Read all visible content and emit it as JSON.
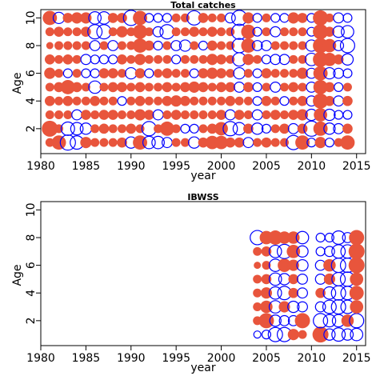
{
  "colors": {
    "positive": "#e8553c",
    "negative": "#0000ff"
  },
  "chart_data": [
    {
      "type": "scatter",
      "title": "Total catches",
      "xlabel": "year",
      "ylabel": "Age",
      "xlim": [
        1980,
        2016
      ],
      "ylim": [
        0.2,
        10.6
      ],
      "xticks": [
        1980,
        1985,
        1990,
        1995,
        2000,
        2005,
        2010,
        2015
      ],
      "yticks": [
        2,
        4,
        6,
        8,
        10
      ],
      "years": [
        1981,
        1982,
        1983,
        1984,
        1985,
        1986,
        1987,
        1988,
        1989,
        1990,
        1991,
        1992,
        1993,
        1994,
        1995,
        1996,
        1997,
        1998,
        1999,
        2000,
        2001,
        2002,
        2003,
        2004,
        2005,
        2006,
        2007,
        2008,
        2009,
        2010,
        2011,
        2012,
        2013,
        2014
      ],
      "ages": [
        1,
        2,
        3,
        4,
        5,
        6,
        7,
        8,
        9,
        10
      ],
      "residuals": [
        [
          0.3,
          1.0,
          0.3,
          0.4,
          0.3,
          0.5,
          0.4,
          0.2,
          0.3,
          0.8
        ],
        [
          0.8,
          0.3,
          0.3,
          0.3,
          0.4,
          0.3,
          0.3,
          0.3,
          0.4,
          -0.5
        ],
        [
          -0.9,
          -0.7,
          0.3,
          0.4,
          0.8,
          -0.3,
          0.4,
          0.3,
          0.3,
          0.4
        ],
        [
          -0.7,
          -0.6,
          -0.4,
          0.3,
          0.4,
          0.3,
          0.3,
          0.3,
          0.3,
          0.5
        ],
        [
          0.5,
          -0.5,
          0.4,
          0.3,
          0.3,
          -0.3,
          -0.4,
          0.3,
          0.4,
          0.5
        ],
        [
          0.3,
          0.3,
          0.3,
          0.4,
          -0.6,
          -0.3,
          -0.3,
          -0.4,
          -0.8,
          -0.6
        ],
        [
          0.3,
          0.4,
          0.4,
          0.3,
          0.3,
          0.4,
          -0.3,
          0.3,
          -0.8,
          -0.6
        ],
        [
          0.3,
          0.3,
          0.4,
          0.3,
          0.4,
          0.4,
          -0.3,
          -0.4,
          0.3,
          0.4
        ],
        [
          0.4,
          0.3,
          0.3,
          -0.3,
          0.4,
          0.3,
          0.4,
          0.3,
          0.5,
          0.4
        ],
        [
          -0.5,
          0.4,
          0.3,
          0.3,
          0.3,
          -0.5,
          0.3,
          0.3,
          0.3,
          -0.9
        ],
        [
          0.8,
          0.3,
          0.5,
          0.4,
          0.4,
          0.4,
          0.5,
          0.8,
          0.8,
          0.8
        ],
        [
          -0.6,
          -0.8,
          0.4,
          0.3,
          0.3,
          -0.3,
          0.3,
          0.4,
          0.3,
          -0.3
        ],
        [
          -0.6,
          0.3,
          -0.4,
          0.3,
          0.3,
          0.3,
          0.3,
          -0.3,
          -0.4,
          -0.3
        ],
        [
          -0.4,
          0.8,
          0.3,
          0.4,
          0.4,
          0.4,
          0.3,
          0.3,
          -0.8,
          -0.3
        ],
        [
          0.3,
          0.3,
          0.4,
          0.5,
          0.3,
          0.3,
          -0.3,
          -0.4,
          0.3,
          0.3
        ],
        [
          0.3,
          -0.3,
          0.3,
          0.4,
          0.4,
          0.3,
          0.3,
          -0.5,
          0.3,
          0.3
        ],
        [
          -0.5,
          -0.3,
          0.3,
          0.3,
          0.5,
          -0.3,
          0.3,
          0.3,
          0.4,
          -0.8
        ],
        [
          0.4,
          0.3,
          0.3,
          0.3,
          0.4,
          0.4,
          0.3,
          -0.3,
          0.3,
          0.4
        ],
        [
          0.7,
          0.4,
          0.3,
          0.3,
          0.3,
          0.5,
          0.5,
          0.4,
          0.4,
          0.3
        ],
        [
          0.7,
          0.7,
          0.4,
          0.3,
          0.4,
          0.4,
          0.4,
          0.3,
          0.3,
          0.3
        ],
        [
          0.4,
          -0.8,
          -0.4,
          0.4,
          0.4,
          0.3,
          0.3,
          0.3,
          0.3,
          -0.4
        ],
        [
          0.4,
          -0.6,
          0.4,
          0.3,
          -0.4,
          -0.5,
          -0.7,
          -0.8,
          -0.9,
          -0.9
        ],
        [
          -0.4,
          0.4,
          0.3,
          0.3,
          0.4,
          0.3,
          0.5,
          0.8,
          0.8,
          0.5
        ],
        [
          0.3,
          -0.5,
          -0.4,
          -0.3,
          -0.3,
          -0.3,
          0.3,
          -0.4,
          -0.3,
          -0.3
        ],
        [
          0.4,
          -0.3,
          0.3,
          0.4,
          0.3,
          0.4,
          -0.3,
          -0.4,
          0.3,
          0.3
        ],
        [
          0.3,
          0.3,
          0.4,
          0.3,
          -0.4,
          0.3,
          -0.4,
          0.3,
          -0.4,
          -0.3
        ],
        [
          0.3,
          0.4,
          0.3,
          -0.3,
          0.3,
          0.3,
          -0.4,
          0.3,
          0.3,
          -0.3
        ],
        [
          -0.8,
          -0.4,
          0.4,
          0.3,
          0.4,
          0.3,
          0.3,
          0.3,
          0.3,
          0.5
        ],
        [
          0.8,
          0.4,
          0.5,
          0.4,
          0.3,
          0.5,
          0.3,
          0.3,
          0.3,
          0.4
        ],
        [
          -0.3,
          -0.9,
          -0.5,
          -0.4,
          -0.4,
          -0.4,
          -0.6,
          -0.5,
          -0.3,
          -0.3
        ],
        [
          0.5,
          0.8,
          0.7,
          0.9,
          0.8,
          0.8,
          0.9,
          0.9,
          0.9,
          0.9
        ],
        [
          -0.3,
          -0.5,
          -0.5,
          0.4,
          0.4,
          -0.5,
          0.7,
          0.7,
          0.4,
          0.3
        ],
        [
          0.3,
          -0.4,
          -0.3,
          -0.4,
          -0.3,
          -0.4,
          0.4,
          -0.4,
          -0.5,
          -0.4
        ],
        [
          0.8,
          0.4,
          -0.3,
          0.4,
          0.3,
          -0.3,
          -0.5,
          -0.8,
          -0.6,
          -0.3
        ]
      ]
    },
    {
      "type": "scatter",
      "title": "IBWSS",
      "xlabel": "year",
      "ylabel": "Age",
      "xlim": [
        1980,
        2016
      ],
      "ylim": [
        0.2,
        10.6
      ],
      "xticks": [
        1980,
        1985,
        1990,
        1995,
        2000,
        2005,
        2010,
        2015
      ],
      "yticks": [
        2,
        4,
        6,
        8,
        10
      ],
      "years": [
        2004,
        2005,
        2006,
        2007,
        2008,
        2009,
        2011,
        2012,
        2013,
        2014,
        2015
      ],
      "ages": [
        1,
        2,
        3,
        4,
        5,
        6,
        7,
        8
      ],
      "residuals": [
        [
          -0.2,
          0.3,
          0.3,
          0.3,
          0.3,
          0.2,
          0.3,
          -0.8
        ],
        [
          -0.3,
          0.9,
          0.6,
          0.5,
          0.4,
          0.3,
          0.4,
          0.7
        ],
        [
          -0.8,
          -0.5,
          -0.6,
          -0.6,
          -0.6,
          -0.6,
          -0.6,
          0.8
        ],
        [
          -0.8,
          -0.4,
          0.5,
          -0.7,
          -0.5,
          0.7,
          -0.8,
          0.6
        ],
        [
          0.5,
          -0.4,
          -0.5,
          0.4,
          0.4,
          0.5,
          0.7,
          0.6
        ],
        [
          0.3,
          0.9,
          -0.4,
          -0.4,
          -0.4,
          -0.5,
          -0.5,
          -0.6
        ],
        [
          1.0,
          -0.8,
          -0.4,
          0.4,
          -0.4,
          -0.4,
          -0.3,
          -0.3
        ],
        [
          -0.5,
          -0.6,
          -0.7,
          -0.6,
          0.5,
          0.6,
          -0.4,
          -0.3
        ],
        [
          -0.7,
          -0.6,
          -0.8,
          -0.8,
          -0.7,
          -0.8,
          -0.7,
          -0.7
        ],
        [
          -0.5,
          0.6,
          -0.7,
          -0.7,
          -0.8,
          -0.8,
          -0.7,
          -0.4
        ],
        [
          -0.6,
          -0.8,
          0.7,
          0.8,
          0.7,
          1.0,
          1.0,
          0.9
        ]
      ]
    }
  ]
}
